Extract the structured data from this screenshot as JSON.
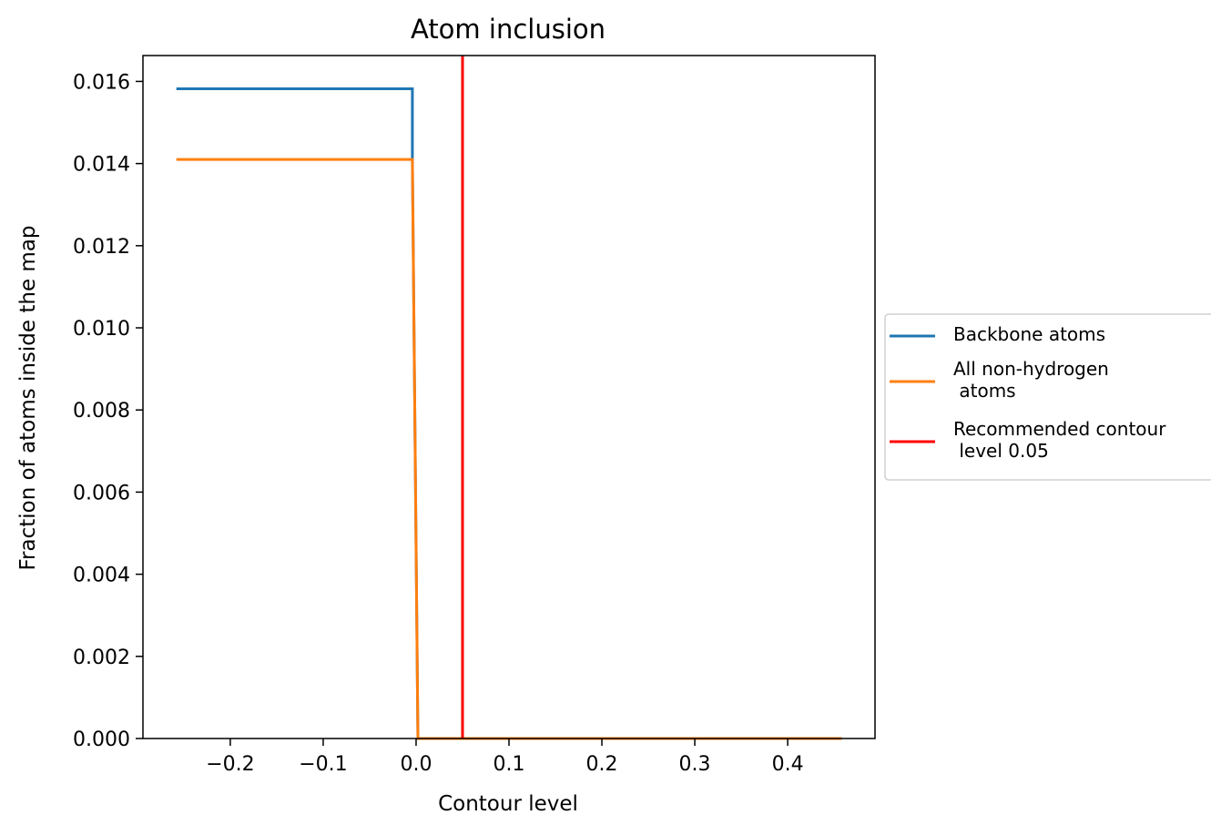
{
  "chart_data": {
    "type": "line",
    "title": "Atom inclusion",
    "xlabel": "Contour level",
    "ylabel": "Fraction of atoms inside the map",
    "xlim": [
      -0.294,
      0.494
    ],
    "ylim": [
      0.0,
      0.01663
    ],
    "xticks": [
      -0.2,
      -0.1,
      0.0,
      0.1,
      0.2,
      0.3,
      0.4
    ],
    "xtick_labels": [
      "−0.2",
      "−0.1",
      "0.0",
      "0.1",
      "0.2",
      "0.3",
      "0.4"
    ],
    "yticks": [
      0.0,
      0.002,
      0.004,
      0.006,
      0.008,
      0.01,
      0.012,
      0.014,
      0.016
    ],
    "ytick_labels": [
      "0.000",
      "0.002",
      "0.004",
      "0.006",
      "0.008",
      "0.010",
      "0.012",
      "0.014",
      "0.016"
    ],
    "series": [
      {
        "name": "Backbone atoms",
        "color": "#1f77b4",
        "x": [
          -0.258,
          -0.004,
          -0.004,
          0.002,
          0.458
        ],
        "y": [
          0.01582,
          0.01582,
          0.0141,
          0.0,
          0.0
        ]
      },
      {
        "name": "All non-hydrogen\n atoms",
        "color": "#ff7f0e",
        "x": [
          -0.258,
          -0.004,
          0.002,
          0.458
        ],
        "y": [
          0.0141,
          0.0141,
          0.0,
          0.0
        ]
      }
    ],
    "vlines": [
      {
        "name": "Recommended contour\n level 0.05",
        "x": 0.05,
        "color": "#ff0000"
      }
    ],
    "legend": "outside right",
    "grid": false
  }
}
